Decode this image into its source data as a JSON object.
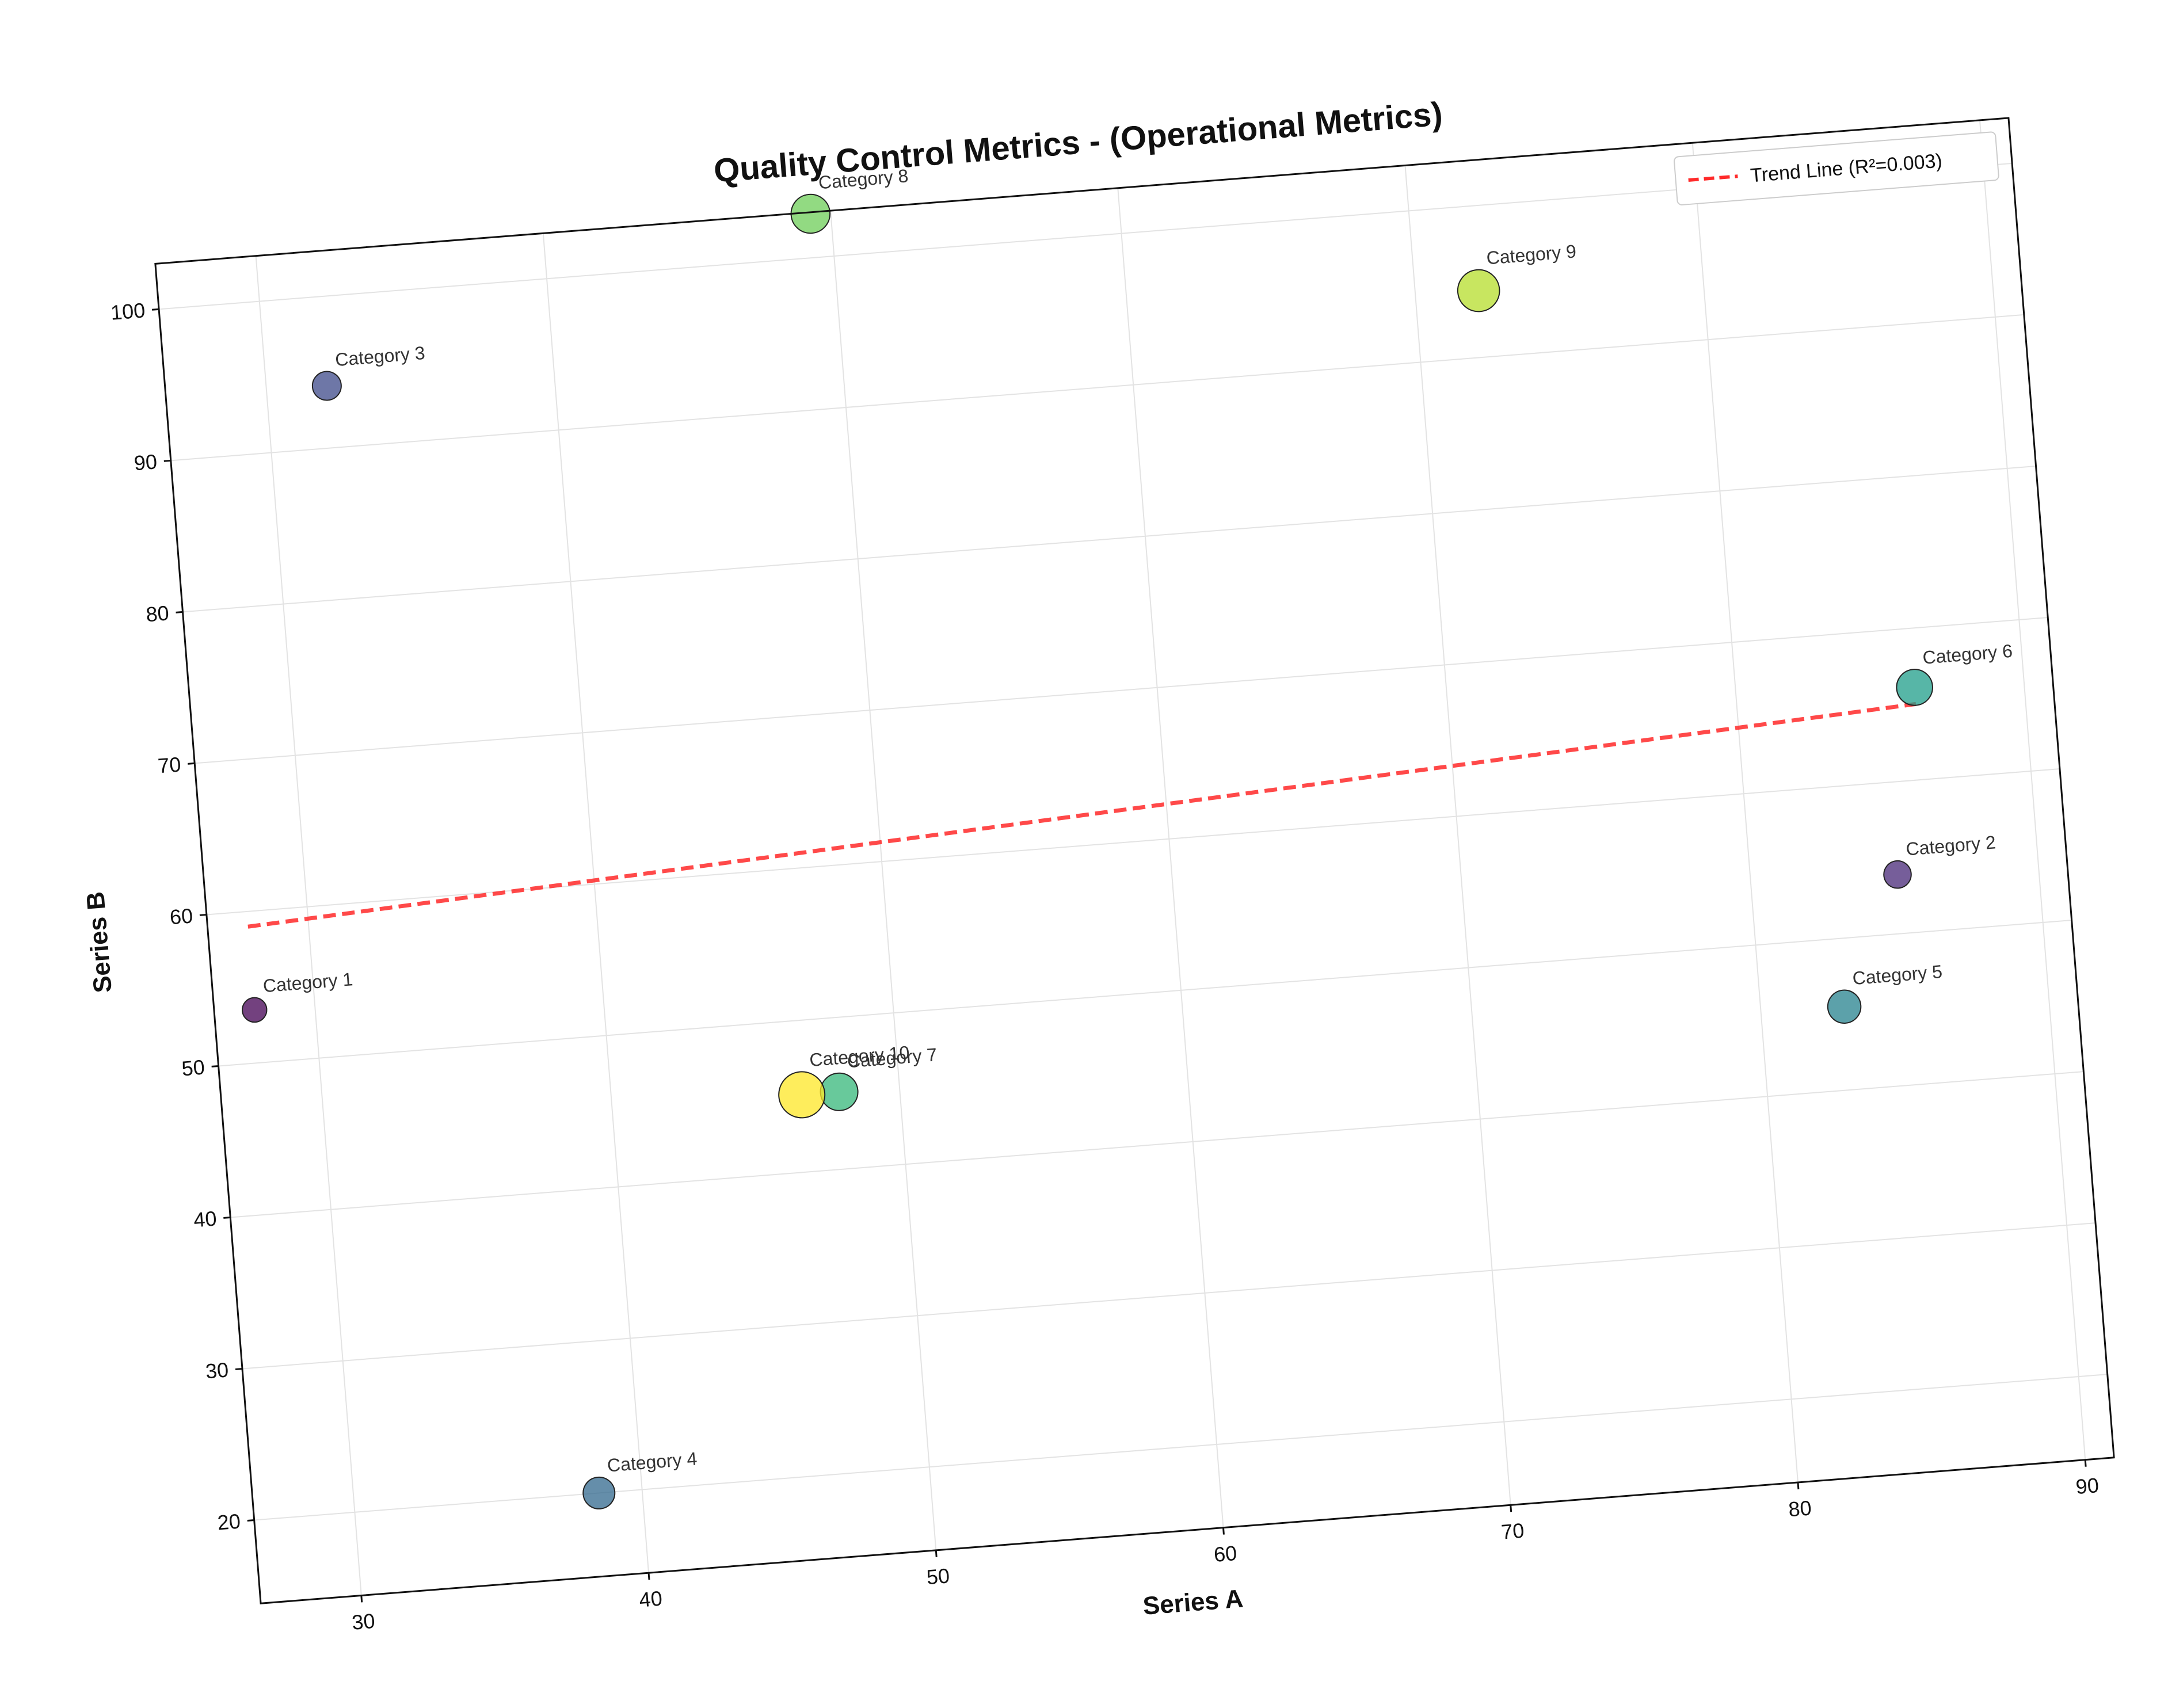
{
  "chart_data": {
    "type": "scatter",
    "title": "Quality Control Metrics - (Operational Metrics)",
    "xlabel": "Series A",
    "ylabel": "Series B",
    "xlim": [
      26.5,
      91
    ],
    "ylim": [
      14.5,
      103
    ],
    "xticks": [
      30,
      40,
      50,
      60,
      70,
      80,
      90
    ],
    "yticks": [
      20,
      30,
      40,
      50,
      60,
      70,
      80,
      90,
      100
    ],
    "grid": true,
    "legend_position": "top-right",
    "points": [
      {
        "label": "Category 1",
        "x": 27.9,
        "y": 53.5,
        "size": 0.25,
        "color": "#440154"
      },
      {
        "label": "Category 2",
        "x": 85.1,
        "y": 53.9,
        "size": 0.35,
        "color": "#482878"
      },
      {
        "label": "Category 3",
        "x": 32.1,
        "y": 94.1,
        "size": 0.4,
        "color": "#3e4989"
      },
      {
        "label": "Category 4",
        "x": 38.5,
        "y": 20.0,
        "size": 0.5,
        "color": "#31688e"
      },
      {
        "label": "Category 5",
        "x": 82.9,
        "y": 45.5,
        "size": 0.55,
        "color": "#26828e"
      },
      {
        "label": "Category 6",
        "x": 86.2,
        "y": 66.1,
        "size": 0.65,
        "color": "#1f9e89"
      },
      {
        "label": "Category 7",
        "x": 47.9,
        "y": 45.1,
        "size": 0.7,
        "color": "#35b779"
      },
      {
        "label": "Category 8",
        "x": 49.3,
        "y": 102.9,
        "size": 0.75,
        "color": "#6ece58"
      },
      {
        "label": "Category 9",
        "x": 72.2,
        "y": 94.4,
        "size": 0.85,
        "color": "#b5de2b"
      },
      {
        "label": "Category 10",
        "x": 46.6,
        "y": 45.1,
        "size": 1.0,
        "color": "#fde725"
      }
    ],
    "trend_line": {
      "label": "Trend Line (R²=0.003)",
      "x": [
        27.9,
        86.2
      ],
      "y": [
        59.0,
        65.0
      ],
      "color": "#ff2a2a"
    }
  }
}
